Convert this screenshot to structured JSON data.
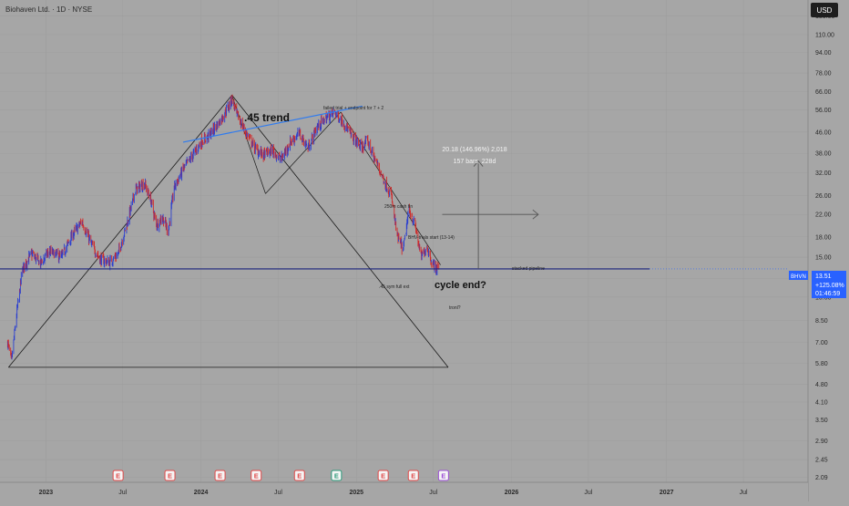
{
  "header": {
    "symbol_line": "Biohaven Ltd. · 1D · NYSE",
    "currency": "USD"
  },
  "colors": {
    "background": "#a6a6a6",
    "axis_text": "#2a2a2a",
    "up": "#2b3fd0",
    "down": "#d02a2a",
    "trend_blue": "#2f7bf0",
    "price_line": "#1a237e",
    "price_label": "#2962ff",
    "earnings_red": "#e04848",
    "earnings_green": "#2a9a7a",
    "dividend_purple": "#9c4dd6"
  },
  "price_label": {
    "ticker": "BHVN",
    "price": "13.51",
    "change": "+125.08%",
    "countdown": "01:46:59"
  },
  "annotations": {
    "trend": ".45 trend",
    "failed_trial": "failed trial + endpoint for 7 + 2",
    "measure_line1": "20.18 (146.96%) 2,018",
    "measure_line2": "157 bars, 228d",
    "cash_fin": "250m cash fin",
    "trials_start": "BHV-trials start (13-14)",
    "stacked_pipeline": "stacked pipeline",
    "cycle_end": "cycle end?",
    "sym_full_ext": ".45 sym full ext",
    "tronl": "tronl?"
  },
  "chart_data": {
    "type": "candlestick",
    "title": "",
    "y_scale": "log",
    "ylim": [
      2.0,
      150.0
    ],
    "x_range": [
      "2022-09-15",
      "2027-11-30"
    ],
    "y_ticks": [
      "130.00",
      "110.00",
      "94.00",
      "78.00",
      "66.00",
      "56.00",
      "46.00",
      "38.00",
      "32.00",
      "26.00",
      "22.00",
      "18.00",
      "15.00",
      "12.40",
      "10.50",
      "8.50",
      "7.00",
      "5.80",
      "4.80",
      "4.10",
      "3.50",
      "2.90",
      "2.45",
      "2.09"
    ],
    "x_ticks": [
      {
        "label": "2023",
        "date": "2023-01-01"
      },
      {
        "label": "Jul",
        "date": "2023-07-01"
      },
      {
        "label": "2024",
        "date": "2024-01-01"
      },
      {
        "label": "Jul",
        "date": "2024-07-01"
      },
      {
        "label": "2025",
        "date": "2025-01-01"
      },
      {
        "label": "Jul",
        "date": "2025-07-01"
      },
      {
        "label": "2026",
        "date": "2026-01-01"
      },
      {
        "label": "Jul",
        "date": "2026-07-01"
      },
      {
        "label": "2027",
        "date": "2027-01-01"
      },
      {
        "label": "Jul",
        "date": "2027-07-01"
      }
    ],
    "price_path": [
      [
        "2022-10-03",
        7.0
      ],
      [
        "2022-10-12",
        5.9
      ],
      [
        "2022-10-24",
        9.0
      ],
      [
        "2022-11-07",
        13.5
      ],
      [
        "2022-11-28",
        15.5
      ],
      [
        "2022-12-19",
        14.2
      ],
      [
        "2023-01-09",
        15.8
      ],
      [
        "2023-02-06",
        15.0
      ],
      [
        "2023-03-06",
        18.5
      ],
      [
        "2023-03-27",
        20.6
      ],
      [
        "2023-04-17",
        17.0
      ],
      [
        "2023-05-08",
        14.8
      ],
      [
        "2023-05-29",
        14.3
      ],
      [
        "2023-06-19",
        15.3
      ],
      [
        "2023-07-10",
        20.0
      ],
      [
        "2023-07-31",
        27.5
      ],
      [
        "2023-08-21",
        29.0
      ],
      [
        "2023-09-05",
        25.0
      ],
      [
        "2023-09-18",
        20.0
      ],
      [
        "2023-10-02",
        21.5
      ],
      [
        "2023-10-16",
        19.0
      ],
      [
        "2023-10-30",
        28.0
      ],
      [
        "2023-11-20",
        33.0
      ],
      [
        "2023-12-11",
        37.0
      ],
      [
        "2024-01-01",
        42.0
      ],
      [
        "2024-01-22",
        45.0
      ],
      [
        "2024-02-12",
        50.0
      ],
      [
        "2024-03-04",
        57.0
      ],
      [
        "2024-03-14",
        62.0
      ],
      [
        "2024-03-25",
        54.0
      ],
      [
        "2024-04-15",
        46.0
      ],
      [
        "2024-05-06",
        40.0
      ],
      [
        "2024-05-27",
        37.5
      ],
      [
        "2024-06-17",
        39.0
      ],
      [
        "2024-07-08",
        36.0
      ],
      [
        "2024-07-29",
        42.0
      ],
      [
        "2024-08-19",
        45.5
      ],
      [
        "2024-09-09",
        40.0
      ],
      [
        "2024-09-30",
        48.0
      ],
      [
        "2024-10-21",
        52.0
      ],
      [
        "2024-11-11",
        55.0
      ],
      [
        "2024-12-02",
        50.0
      ],
      [
        "2024-12-23",
        44.0
      ],
      [
        "2025-01-13",
        40.0
      ],
      [
        "2025-01-27",
        42.5
      ],
      [
        "2025-02-10",
        37.0
      ],
      [
        "2025-02-24",
        33.0
      ],
      [
        "2025-03-10",
        29.0
      ],
      [
        "2025-03-24",
        26.0
      ],
      [
        "2025-04-07",
        18.0
      ],
      [
        "2025-04-21",
        16.0
      ],
      [
        "2025-05-05",
        23.0
      ],
      [
        "2025-05-19",
        20.0
      ],
      [
        "2025-06-02",
        15.0
      ],
      [
        "2025-06-16",
        16.5
      ],
      [
        "2025-06-30",
        14.0
      ],
      [
        "2025-07-14",
        13.51
      ]
    ],
    "last_price": 13.51,
    "horizontal_line": 13.51,
    "events": [
      {
        "type": "E",
        "date": "2023-06-20"
      },
      {
        "type": "E",
        "date": "2023-10-20"
      },
      {
        "type": "E",
        "date": "2024-02-15"
      },
      {
        "type": "E",
        "date": "2024-05-10"
      },
      {
        "type": "E",
        "date": "2024-08-20"
      },
      {
        "type": "E",
        "date": "2024-11-15"
      },
      {
        "type": "E",
        "date": "2025-03-05"
      },
      {
        "type": "E",
        "date": "2025-05-15"
      },
      {
        "type": "E",
        "date": "2025-07-25"
      }
    ]
  }
}
